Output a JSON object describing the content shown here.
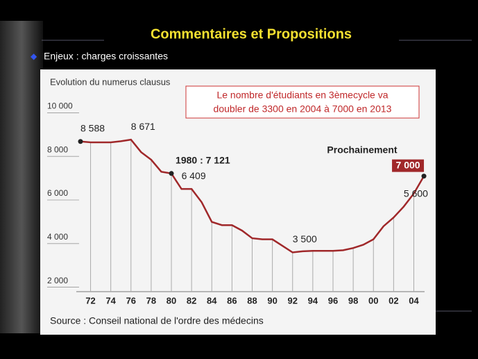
{
  "slide": {
    "title": "Commentaires et Propositions",
    "bullet": "Enjeux : charges croissantes"
  },
  "chart_data": {
    "type": "line",
    "title": "Evolution du numerus clausus",
    "callout": [
      "Le nombre d'étudiants en 3èmecycle va",
      "doubler de 3300 en 2004 à 7000 en 2013"
    ],
    "annotation": "Prochainement",
    "source": "Source : Conseil national de l'ordre des médecins",
    "categories": [
      null,
      "72",
      null,
      "74",
      null,
      "76",
      null,
      "78",
      null,
      "80",
      null,
      "82",
      null,
      "84",
      null,
      "86",
      null,
      "88",
      null,
      "90",
      null,
      "92",
      null,
      "94",
      null,
      "96",
      null,
      "98",
      null,
      "00",
      null,
      "02",
      null,
      "04",
      null
    ],
    "series": [
      {
        "color": "#a0282a",
        "values": [
          8588,
          8550,
          8550,
          8550,
          8600,
          8671,
          8100,
          7750,
          7200,
          7121,
          6409,
          6409,
          5800,
          4900,
          4750,
          4750,
          4500,
          4150,
          4100,
          4100,
          3800,
          3500,
          3550,
          3570,
          3570,
          3570,
          3600,
          3700,
          3850,
          4100,
          4700,
          5100,
          5600,
          6200,
          7000
        ],
        "value_labels": [
          "8 588",
          null,
          null,
          null,
          null,
          "8 671",
          null,
          null,
          null,
          "1980 : 7 121",
          "6 409",
          null,
          null,
          null,
          null,
          null,
          null,
          null,
          null,
          null,
          null,
          "3 500",
          null,
          null,
          null,
          null,
          null,
          null,
          null,
          null,
          null,
          null,
          "5 600",
          null,
          "7 000"
        ]
      }
    ],
    "ylim": [
      1700,
      10300
    ],
    "yticks": [
      {
        "value": 2000,
        "label": "2 000"
      },
      {
        "value": 4000,
        "label": "4 000"
      },
      {
        "value": 6000,
        "label": "6 000"
      },
      {
        "value": 8000,
        "label": "8 000"
      },
      {
        "value": 10000,
        "label": "10 000"
      }
    ]
  }
}
